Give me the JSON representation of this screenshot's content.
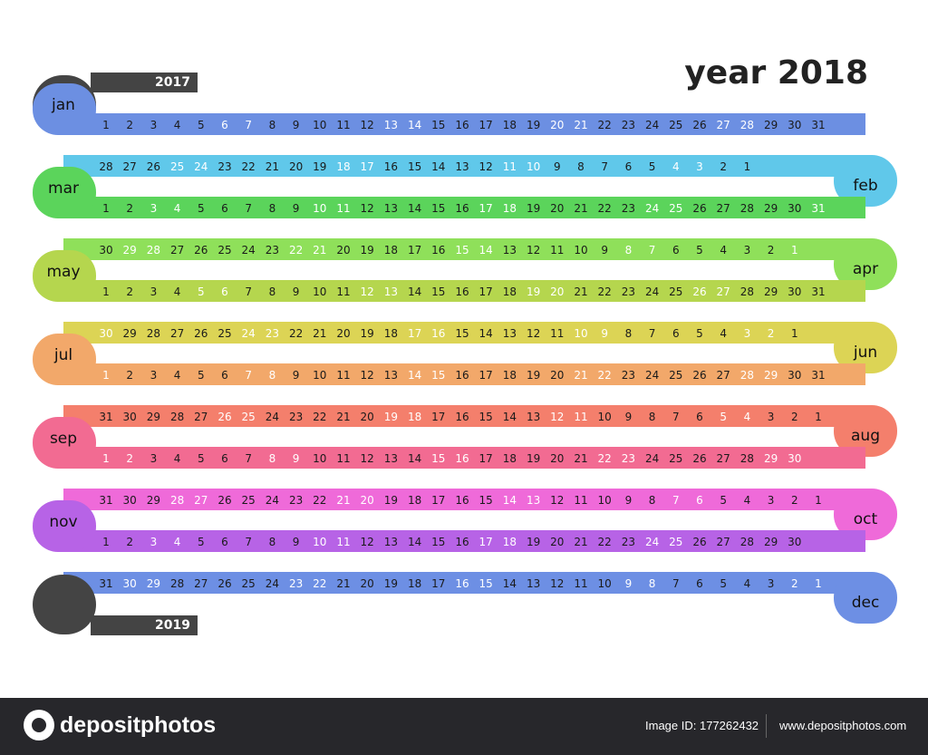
{
  "header": {
    "title": "year 2018"
  },
  "prev_year": "2017",
  "next_year": "2019",
  "year_colors": {
    "prev": "#444444",
    "next": "#444444"
  },
  "months": [
    {
      "name": "jan",
      "days": 31,
      "color": "#6c8fe2",
      "dir": "ltr",
      "light_days": [
        6,
        7,
        13,
        14,
        20,
        21,
        27,
        28
      ]
    },
    {
      "name": "feb",
      "days": 28,
      "color": "#60c8ea",
      "dir": "rtl",
      "light_days": [
        25,
        24,
        18,
        17,
        11,
        10,
        4,
        3
      ]
    },
    {
      "name": "mar",
      "days": 31,
      "color": "#5bd45b",
      "dir": "ltr",
      "light_days": [
        3,
        4,
        10,
        11,
        17,
        18,
        24,
        25,
        31
      ]
    },
    {
      "name": "apr",
      "days": 30,
      "color": "#8fe05a",
      "dir": "rtl",
      "light_days": [
        29,
        28,
        22,
        21,
        15,
        14,
        8,
        7,
        1
      ]
    },
    {
      "name": "may",
      "days": 31,
      "color": "#b5d64e",
      "dir": "ltr",
      "light_days": [
        5,
        6,
        12,
        13,
        19,
        20,
        26,
        27
      ]
    },
    {
      "name": "jun",
      "days": 30,
      "color": "#dcd455",
      "dir": "rtl",
      "light_days": [
        30,
        24,
        23,
        17,
        16,
        10,
        9,
        3,
        2
      ]
    },
    {
      "name": "jul",
      "days": 31,
      "color": "#f2a86a",
      "dir": "ltr",
      "light_days": [
        1,
        7,
        8,
        14,
        15,
        21,
        22,
        28,
        29
      ]
    },
    {
      "name": "aug",
      "days": 31,
      "color": "#f47f6c",
      "dir": "rtl",
      "light_days": [
        26,
        25,
        19,
        18,
        12,
        11,
        5,
        4
      ]
    },
    {
      "name": "sep",
      "days": 30,
      "color": "#f26b92",
      "dir": "ltr",
      "light_days": [
        1,
        2,
        8,
        9,
        15,
        16,
        22,
        23,
        29,
        30
      ]
    },
    {
      "name": "oct",
      "days": 31,
      "color": "#ef6ad9",
      "dir": "rtl",
      "light_days": [
        28,
        27,
        21,
        20,
        14,
        13,
        7,
        6
      ]
    },
    {
      "name": "nov",
      "days": 30,
      "color": "#b763e6",
      "dir": "ltr",
      "light_days": [
        3,
        4,
        10,
        11,
        17,
        18,
        24,
        25
      ]
    },
    {
      "name": "dec",
      "days": 31,
      "color": "#6d8fe4",
      "dir": "rtl",
      "light_days": [
        30,
        29,
        23,
        22,
        16,
        15,
        9,
        8,
        2,
        1
      ]
    }
  ],
  "footer": {
    "logo": "depositphotos",
    "image_id": "Image ID: 177262432",
    "url": "www.depositphotos.com"
  }
}
